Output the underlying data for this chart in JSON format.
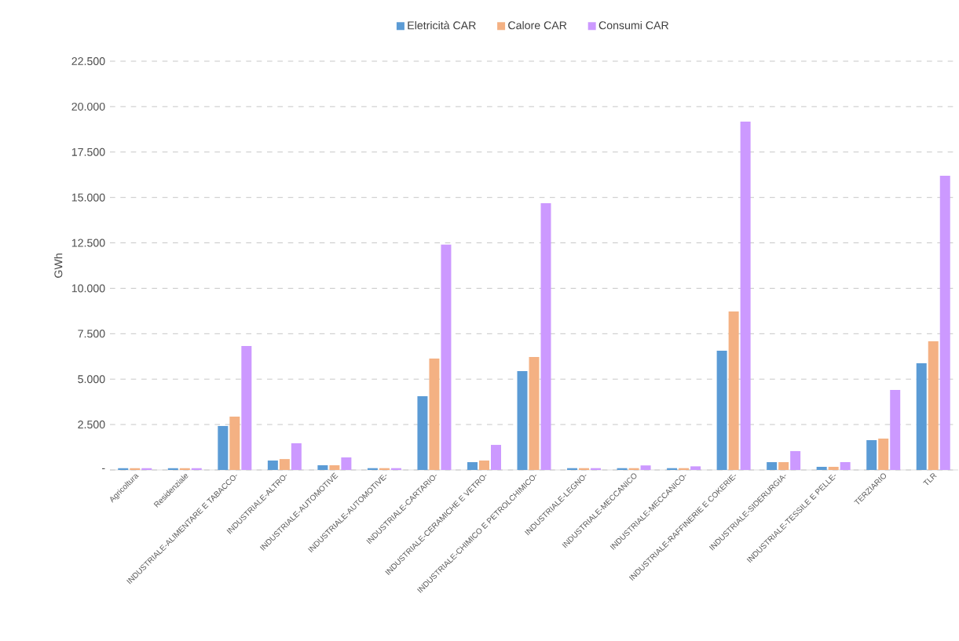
{
  "chart_data": {
    "type": "bar",
    "ylabel": "GWh",
    "categories": [
      "Agricoltura",
      "Residenziale",
      "INDUSTRIALE-ALIMENTARE E TABACCO-",
      "INDUSTRIALE-ALTRO-",
      "INDUSTRIALE-AUTOMOTIVE",
      "INDUSTRIALE-AUTOMOTIVE-",
      "INDUSTRIALE-CARTARIO-",
      "INDUSTRIALE-CERAMICHE E VETRO-",
      "INDUSTRIALE-CHIMICO E PETROLCHIMICO-",
      "INDUSTRIALE-LEGNO-",
      "INDUSTRIALE-MECCANICO",
      "INDUSTRIALE-MECCANICO-",
      "INDUSTRIALE-RAFFINERIE E COKERIE-",
      "INDUSTRIALE-SIDERURGIA-",
      "INDUSTRIALE-TESSILE E PELLE-",
      "TERZIARIO",
      "TLR"
    ],
    "series": [
      {
        "name": "Eletricità CAR",
        "color": "#5b9bd5",
        "values": [
          100,
          100,
          2420,
          520,
          260,
          100,
          4060,
          430,
          5440,
          100,
          100,
          100,
          6560,
          430,
          170,
          1640,
          5870
        ]
      },
      {
        "name": "Calore CAR",
        "color": "#f4b183",
        "values": [
          100,
          100,
          2940,
          600,
          260,
          100,
          6130,
          520,
          6220,
          100,
          100,
          100,
          8720,
          430,
          170,
          1730,
          7080
        ]
      },
      {
        "name": "Consumi CAR",
        "color": "#cc99ff",
        "values": [
          100,
          100,
          6820,
          1470,
          690,
          100,
          12400,
          1380,
          14680,
          100,
          250,
          200,
          19170,
          1040,
          430,
          4400,
          16190
        ]
      }
    ],
    "ylim": [
      0,
      22500
    ],
    "yticks": [
      {
        "value": 0,
        "label": "-"
      },
      {
        "value": 2500,
        "label": "2.500"
      },
      {
        "value": 5000,
        "label": "5.000"
      },
      {
        "value": 7500,
        "label": "7.500"
      },
      {
        "value": 10000,
        "label": "10.000"
      },
      {
        "value": 12500,
        "label": "12.500"
      },
      {
        "value": 15000,
        "label": "15.000"
      },
      {
        "value": 17500,
        "label": "17.500"
      },
      {
        "value": 20000,
        "label": "20.000"
      },
      {
        "value": 22500,
        "label": "22.500"
      }
    ],
    "grid": "y",
    "legend": "top"
  }
}
